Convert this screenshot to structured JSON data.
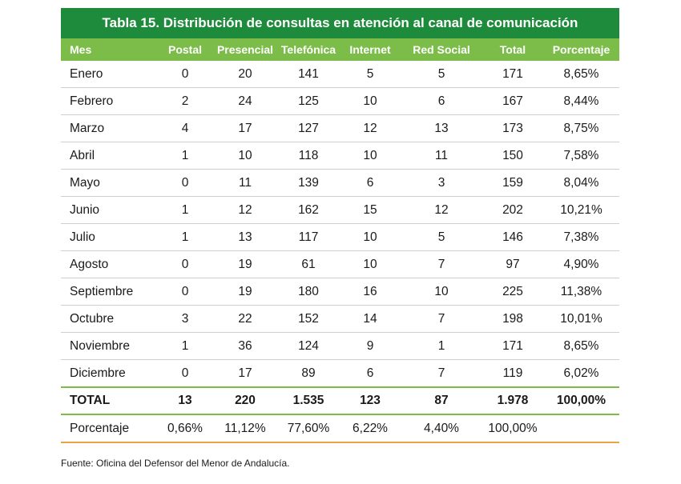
{
  "title": "Tabla 15. Distribución de consultas en atención al canal de comunicación",
  "headers": [
    "Mes",
    "Postal",
    "Presencial",
    "Telefónica",
    "Internet",
    "Red Social",
    "Total",
    "Porcentaje"
  ],
  "rows": [
    [
      "Enero",
      "0",
      "20",
      "141",
      "5",
      "5",
      "171",
      "8,65%"
    ],
    [
      "Febrero",
      "2",
      "24",
      "125",
      "10",
      "6",
      "167",
      "8,44%"
    ],
    [
      "Marzo",
      "4",
      "17",
      "127",
      "12",
      "13",
      "173",
      "8,75%"
    ],
    [
      "Abril",
      "1",
      "10",
      "118",
      "10",
      "11",
      "150",
      "7,58%"
    ],
    [
      "Mayo",
      "0",
      "11",
      "139",
      "6",
      "3",
      "159",
      "8,04%"
    ],
    [
      "Junio",
      "1",
      "12",
      "162",
      "15",
      "12",
      "202",
      "10,21%"
    ],
    [
      "Julio",
      "1",
      "13",
      "117",
      "10",
      "5",
      "146",
      "7,38%"
    ],
    [
      "Agosto",
      "0",
      "19",
      "61",
      "10",
      "7",
      "97",
      "4,90%"
    ],
    [
      "Septiembre",
      "0",
      "19",
      "180",
      "16",
      "10",
      "225",
      "11,38%"
    ],
    [
      "Octubre",
      "3",
      "22",
      "152",
      "14",
      "7",
      "198",
      "10,01%"
    ],
    [
      "Noviembre",
      "1",
      "36",
      "124",
      "9",
      "1",
      "171",
      "8,65%"
    ],
    [
      "Diciembre",
      "0",
      "17",
      "89",
      "6",
      "7",
      "119",
      "6,02%"
    ]
  ],
  "total_row": [
    "TOTAL",
    "13",
    "220",
    "1.535",
    "123",
    "87",
    "1.978",
    "100,00%"
  ],
  "percentage_row": [
    "Porcentaje",
    "0,66%",
    "11,12%",
    "77,60%",
    "6,22%",
    "4,40%",
    "100,00%",
    ""
  ],
  "source": "Fuente: Oficina del Defensor del Menor de Andalucía.",
  "colors": {
    "title_bg": "#1e8a3b",
    "header_bg": "#7cbd4a",
    "bottom_rule": "#e9a44a"
  }
}
